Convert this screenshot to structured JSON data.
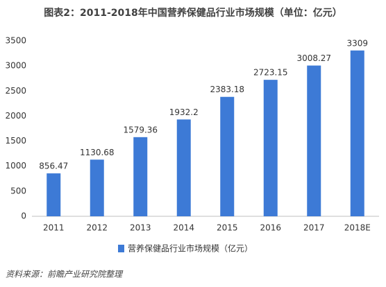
{
  "chart_data": {
    "type": "bar",
    "title": "图表2：2011-2018年中国营养保健品行业市场规模（单位：亿元）",
    "categories": [
      "2011",
      "2012",
      "2013",
      "2014",
      "2015",
      "2016",
      "2017",
      "2018E"
    ],
    "series": [
      {
        "name": "营养保健品行业市场规模（亿元）",
        "color": "#3d7ad6",
        "values": [
          856.47,
          1130.68,
          1579.36,
          1932.2,
          2383.18,
          2723.15,
          3008.27,
          3309
        ]
      }
    ],
    "ylim": [
      0,
      3500
    ],
    "yticks": [
      0,
      500,
      1000,
      1500,
      2000,
      2500,
      3000,
      3500
    ],
    "grid": false,
    "legend": "bottom",
    "source": "资料来源：前瞻产业研究院整理"
  }
}
